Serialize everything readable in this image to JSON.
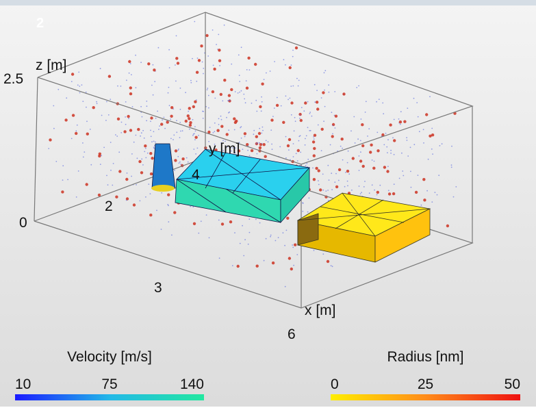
{
  "panel_label": "2",
  "axes": {
    "z": {
      "label": "z [m]",
      "ticks": [
        "2.5",
        "0"
      ]
    },
    "y": {
      "label": "y [m]",
      "ticks": [
        "2",
        "4"
      ]
    },
    "x": {
      "label": "x [m]",
      "ticks": [
        "3",
        "6"
      ]
    }
  },
  "colorbars": [
    {
      "title": "Velocity [m/s]",
      "ticks": [
        10,
        75,
        140
      ],
      "colors": [
        "#1a1aff",
        "#22b8e8",
        "#22e8a0"
      ]
    },
    {
      "title": "Radius [nm]",
      "ticks": [
        0,
        25,
        50
      ],
      "colors": [
        "#ffee00",
        "#ff8c1a",
        "#ee1111"
      ]
    }
  ]
}
